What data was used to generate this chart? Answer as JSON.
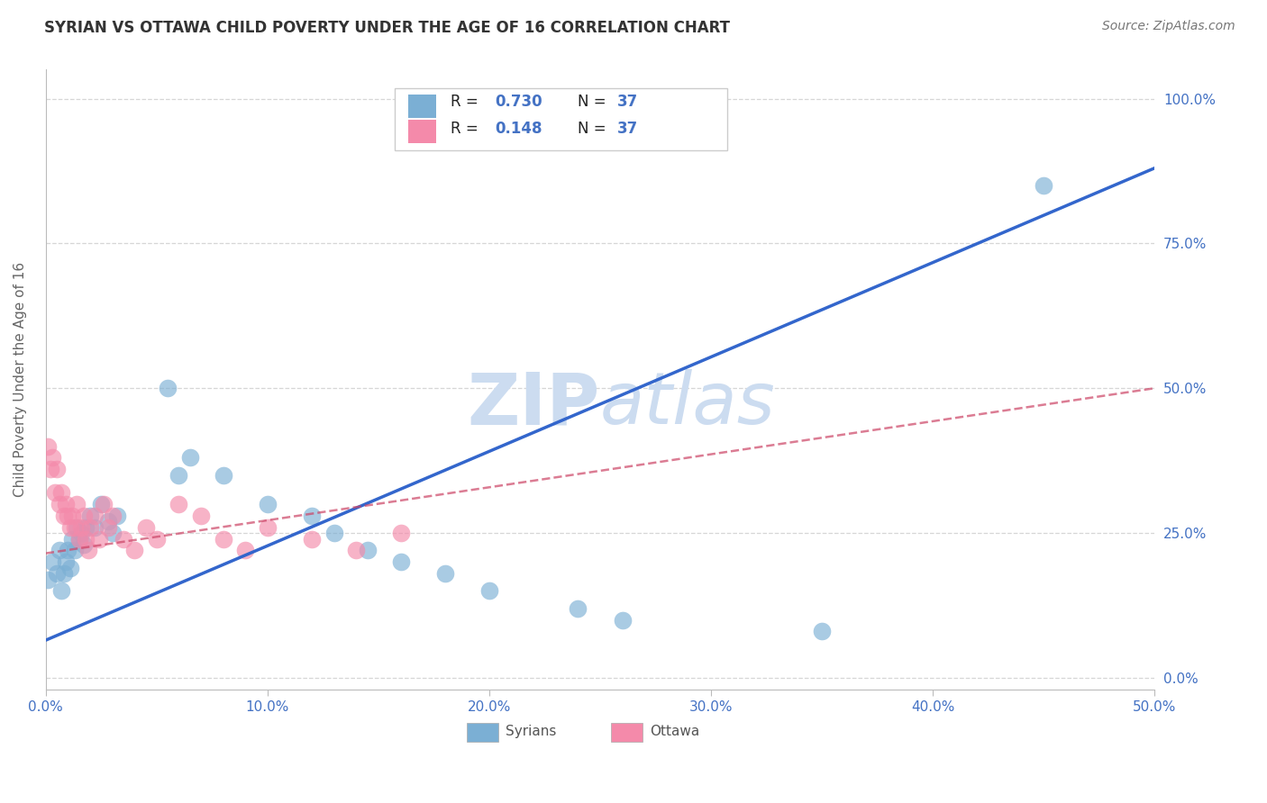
{
  "title": "SYRIAN VS OTTAWA CHILD POVERTY UNDER THE AGE OF 16 CORRELATION CHART",
  "source": "Source: ZipAtlas.com",
  "ylabel": "Child Poverty Under the Age of 16",
  "xmin": 0.0,
  "xmax": 0.5,
  "ymin": -0.02,
  "ymax": 1.05,
  "legend_label_color": "#4472c4",
  "syrians_color": "#7bafd4",
  "ottawa_color": "#f48aaa",
  "trendline_blue_color": "#3366cc",
  "trendline_pink_color": "#cc4466",
  "grid_color": "#cccccc",
  "watermark_color": "#ccdcf0",
  "syrians_x": [
    0.001,
    0.003,
    0.005,
    0.006,
    0.007,
    0.008,
    0.009,
    0.01,
    0.011,
    0.012,
    0.013,
    0.014,
    0.015,
    0.016,
    0.017,
    0.018,
    0.02,
    0.022,
    0.025,
    0.028,
    0.03,
    0.032,
    0.055,
    0.06,
    0.065,
    0.08,
    0.1,
    0.12,
    0.13,
    0.145,
    0.16,
    0.18,
    0.2,
    0.24,
    0.26,
    0.35,
    0.45
  ],
  "syrians_y": [
    0.17,
    0.2,
    0.18,
    0.22,
    0.15,
    0.18,
    0.2,
    0.22,
    0.19,
    0.24,
    0.22,
    0.26,
    0.24,
    0.25,
    0.23,
    0.26,
    0.28,
    0.26,
    0.3,
    0.27,
    0.25,
    0.28,
    0.5,
    0.35,
    0.38,
    0.35,
    0.3,
    0.28,
    0.25,
    0.22,
    0.2,
    0.18,
    0.15,
    0.12,
    0.1,
    0.08,
    0.85
  ],
  "ottawa_x": [
    0.001,
    0.002,
    0.003,
    0.004,
    0.005,
    0.006,
    0.007,
    0.008,
    0.009,
    0.01,
    0.011,
    0.012,
    0.013,
    0.014,
    0.015,
    0.016,
    0.017,
    0.018,
    0.019,
    0.02,
    0.022,
    0.024,
    0.026,
    0.028,
    0.03,
    0.035,
    0.04,
    0.045,
    0.05,
    0.06,
    0.07,
    0.08,
    0.09,
    0.1,
    0.12,
    0.14,
    0.16
  ],
  "ottawa_y": [
    0.4,
    0.36,
    0.38,
    0.32,
    0.36,
    0.3,
    0.32,
    0.28,
    0.3,
    0.28,
    0.26,
    0.28,
    0.26,
    0.3,
    0.24,
    0.26,
    0.28,
    0.24,
    0.22,
    0.26,
    0.28,
    0.24,
    0.3,
    0.26,
    0.28,
    0.24,
    0.22,
    0.26,
    0.24,
    0.3,
    0.28,
    0.24,
    0.22,
    0.26,
    0.24,
    0.22,
    0.25
  ],
  "blue_trend_x0": 0.0,
  "blue_trend_x1": 0.5,
  "blue_trend_y0": 0.065,
  "blue_trend_y1": 0.88,
  "pink_trend_x0": 0.0,
  "pink_trend_x1": 0.5,
  "pink_trend_y0": 0.215,
  "pink_trend_y1": 0.5,
  "background_color": "#ffffff",
  "title_fontsize": 12,
  "axis_label_fontsize": 11,
  "tick_fontsize": 11,
  "source_fontsize": 10
}
